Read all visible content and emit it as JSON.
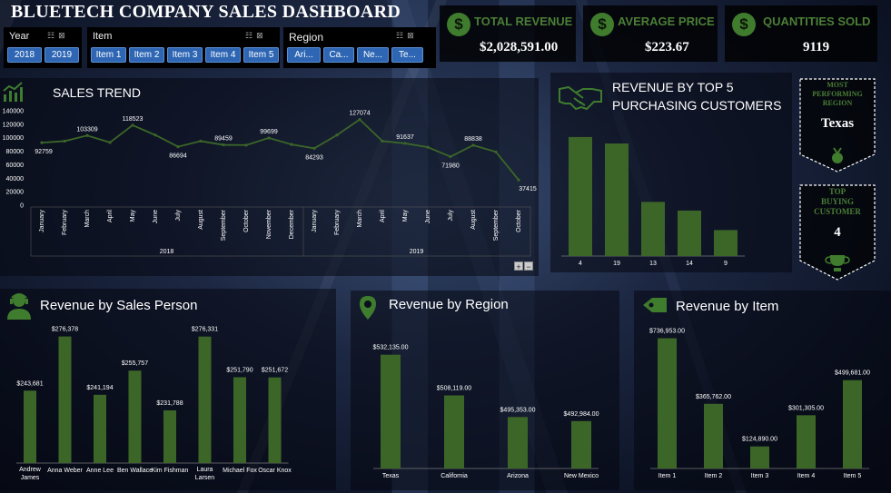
{
  "header": {
    "title": "BLUETECH COMPANY SALES DASHBOARD"
  },
  "slicers": {
    "year": {
      "label": "Year",
      "options": [
        "2018",
        "2019"
      ]
    },
    "item": {
      "label": "Item",
      "options": [
        "Item 1",
        "Item 2",
        "Item 3",
        "Item 4",
        "Item 5"
      ]
    },
    "region": {
      "label": "Region",
      "options": [
        "Ari...",
        "Ca...",
        "Ne...",
        "Te..."
      ]
    }
  },
  "kpis": {
    "total_revenue": {
      "label": "TOTAL REVENUE",
      "value": "$2,028,591.00",
      "icon": "dollar-icon"
    },
    "average_price": {
      "label": "AVERAGE PRICE",
      "value": "$223.67",
      "icon": "dollar-icon"
    },
    "quantities_sold": {
      "label": "QUANTITIES SOLD",
      "value": "9119",
      "icon": "dollar-icon"
    }
  },
  "sales_trend": {
    "title": "SALES TREND",
    "zoom_in": "+",
    "zoom_out": "−"
  },
  "top_customers": {
    "title_line1": "REVENUE BY TOP 5",
    "title_line2": "PURCHASING CUSTOMERS"
  },
  "badges": {
    "region": {
      "line1": "MOST",
      "line2": "PERFORMING",
      "line3": "REGION",
      "value": "Texas"
    },
    "customer": {
      "line1": "TOP",
      "line2": "BUYING",
      "line3": "CUSTOMER",
      "value": "4"
    }
  },
  "sales_person": {
    "title": "Revenue by Sales Person"
  },
  "region_panel": {
    "title": "Revenue by Region"
  },
  "item_panel": {
    "title": "Revenue by Item"
  },
  "colors": {
    "bar": "#3c6628",
    "accent": "#3f7c2e",
    "slicer_button": "#2e66b4"
  },
  "chart_data": [
    {
      "id": "sales_trend",
      "type": "line",
      "title": "SALES TREND",
      "x": [
        "January",
        "February",
        "March",
        "April",
        "May",
        "June",
        "July",
        "August",
        "September",
        "October",
        "November",
        "December",
        "January",
        "February",
        "March",
        "April",
        "May",
        "June",
        "July",
        "August",
        "September",
        "October"
      ],
      "groups": [
        {
          "name": "2018",
          "count": 12
        },
        {
          "name": "2019",
          "count": 10
        }
      ],
      "values": [
        92759,
        95000,
        103309,
        93000,
        118523,
        104000,
        86694,
        95000,
        89459,
        89000,
        99699,
        90000,
        84293,
        104000,
        127074,
        95000,
        91637,
        86000,
        71980,
        88838,
        79000,
        37415
      ],
      "labels": {
        "0": "92759",
        "2": "103309",
        "4": "118523",
        "6": "86694",
        "8": "89459",
        "10": "99699",
        "12": "84293",
        "14": "127074",
        "16": "91637",
        "18": "71980",
        "19": "88838",
        "21": "37415"
      },
      "yticks": [
        "0",
        "20000",
        "40000",
        "60000",
        "80000",
        "100000",
        "120000",
        "140000"
      ],
      "ylim": [
        0,
        140000
      ]
    },
    {
      "id": "top_customers",
      "type": "bar",
      "title": "REVENUE BY TOP 5 PURCHASING CUSTOMERS",
      "categories": [
        "4",
        "19",
        "13",
        "14",
        "9"
      ],
      "values": [
        110000,
        104000,
        50000,
        42000,
        24000
      ],
      "ylim": [
        0,
        120000
      ]
    },
    {
      "id": "sales_person",
      "type": "bar",
      "title": "Revenue by Sales Person",
      "categories": [
        "Andrew James",
        "Anna Weber",
        "Anne Lee",
        "Ben Wallace",
        "Kim Fishman",
        "Laura Larsen",
        "Michael Fox",
        "Oscar Knox"
      ],
      "values": [
        243681,
        276378,
        241194,
        255757,
        231788,
        276331,
        251790,
        251672
      ],
      "data_labels": [
        "$243,681",
        "$276,378",
        "$241,194",
        "$255,757",
        "$231,788",
        "$276,331",
        "$251,790",
        "$251,672"
      ],
      "ylim": [
        200000,
        280000
      ]
    },
    {
      "id": "region",
      "type": "bar",
      "title": "Revenue by Region",
      "categories": [
        "Texas",
        "California",
        "Arizona",
        "New Mexico"
      ],
      "values": [
        532135,
        508119,
        495353,
        492984
      ],
      "data_labels": [
        "$532,135.00",
        "$508,119.00",
        "$495,353.00",
        "$492,984.00"
      ],
      "ylim": [
        465000,
        540000
      ]
    },
    {
      "id": "item",
      "type": "bar",
      "title": "Revenue by Item",
      "categories": [
        "Item 1",
        "Item 2",
        "Item 3",
        "Item 4",
        "Item 5"
      ],
      "values": [
        736953,
        365762,
        124890,
        301305,
        499681
      ],
      "data_labels": [
        "$736,953.00",
        "$365,762.00",
        "$124,890.00",
        "$301,305.00",
        "$499,681.00"
      ],
      "ylim": [
        0,
        750000
      ]
    }
  ]
}
